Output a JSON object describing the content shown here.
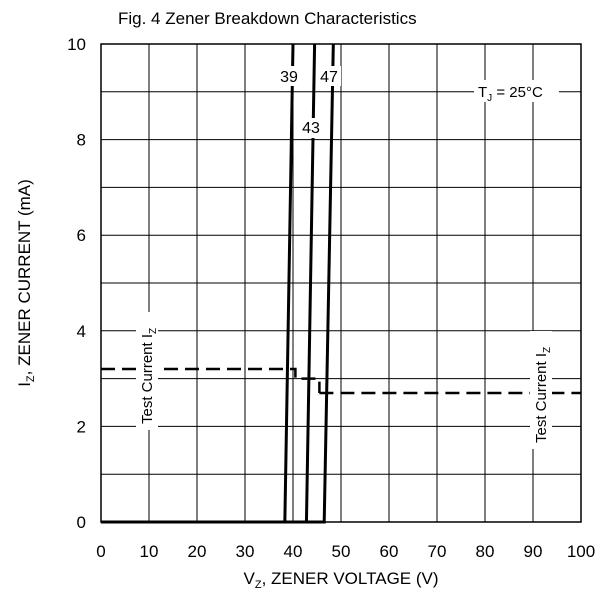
{
  "chart_data": {
    "type": "line",
    "title": "Fig. 4 Zener Breakdown Characteristics",
    "xlabel": {
      "main": "V",
      "sub": "Z",
      "rest": ", ZENER VOLTAGE (V)"
    },
    "ylabel": {
      "main": "I",
      "sub": "Z",
      "rest": ", ZENER CURRENT (mA)"
    },
    "xlim": [
      0,
      100
    ],
    "ylim": [
      0,
      10
    ],
    "xticks": [
      0,
      10,
      20,
      30,
      40,
      50,
      60,
      70,
      80,
      90,
      100
    ],
    "yticks": [
      0,
      2,
      4,
      6,
      8,
      10
    ],
    "grid": true,
    "legend": "none",
    "series": [
      {
        "name": "39",
        "x": [
          0,
          38.3,
          40.0
        ],
        "y": [
          0,
          0,
          10
        ]
      },
      {
        "name": "43",
        "x": [
          0,
          42.8,
          44.5
        ],
        "y": [
          0,
          0,
          10
        ]
      },
      {
        "name": "47",
        "x": [
          0,
          46.5,
          48.4
        ],
        "y": [
          0,
          0,
          10
        ]
      }
    ],
    "test_current": [
      {
        "x": [
          0,
          40.5,
          40.5,
          45.5,
          45.5
        ],
        "y": [
          3.2,
          3.2,
          3.0,
          3.0,
          2.7
        ]
      },
      {
        "x": [
          45.5,
          100
        ],
        "y": [
          2.7,
          2.7
        ]
      }
    ],
    "annotations": {
      "tj": {
        "main": "T",
        "sub": "J",
        "rest": " = 25°C"
      },
      "test_current_left": {
        "main": "Test Current I",
        "sub": "Z"
      },
      "test_current_right": {
        "main": "Test Current I",
        "sub": "Z"
      }
    }
  }
}
